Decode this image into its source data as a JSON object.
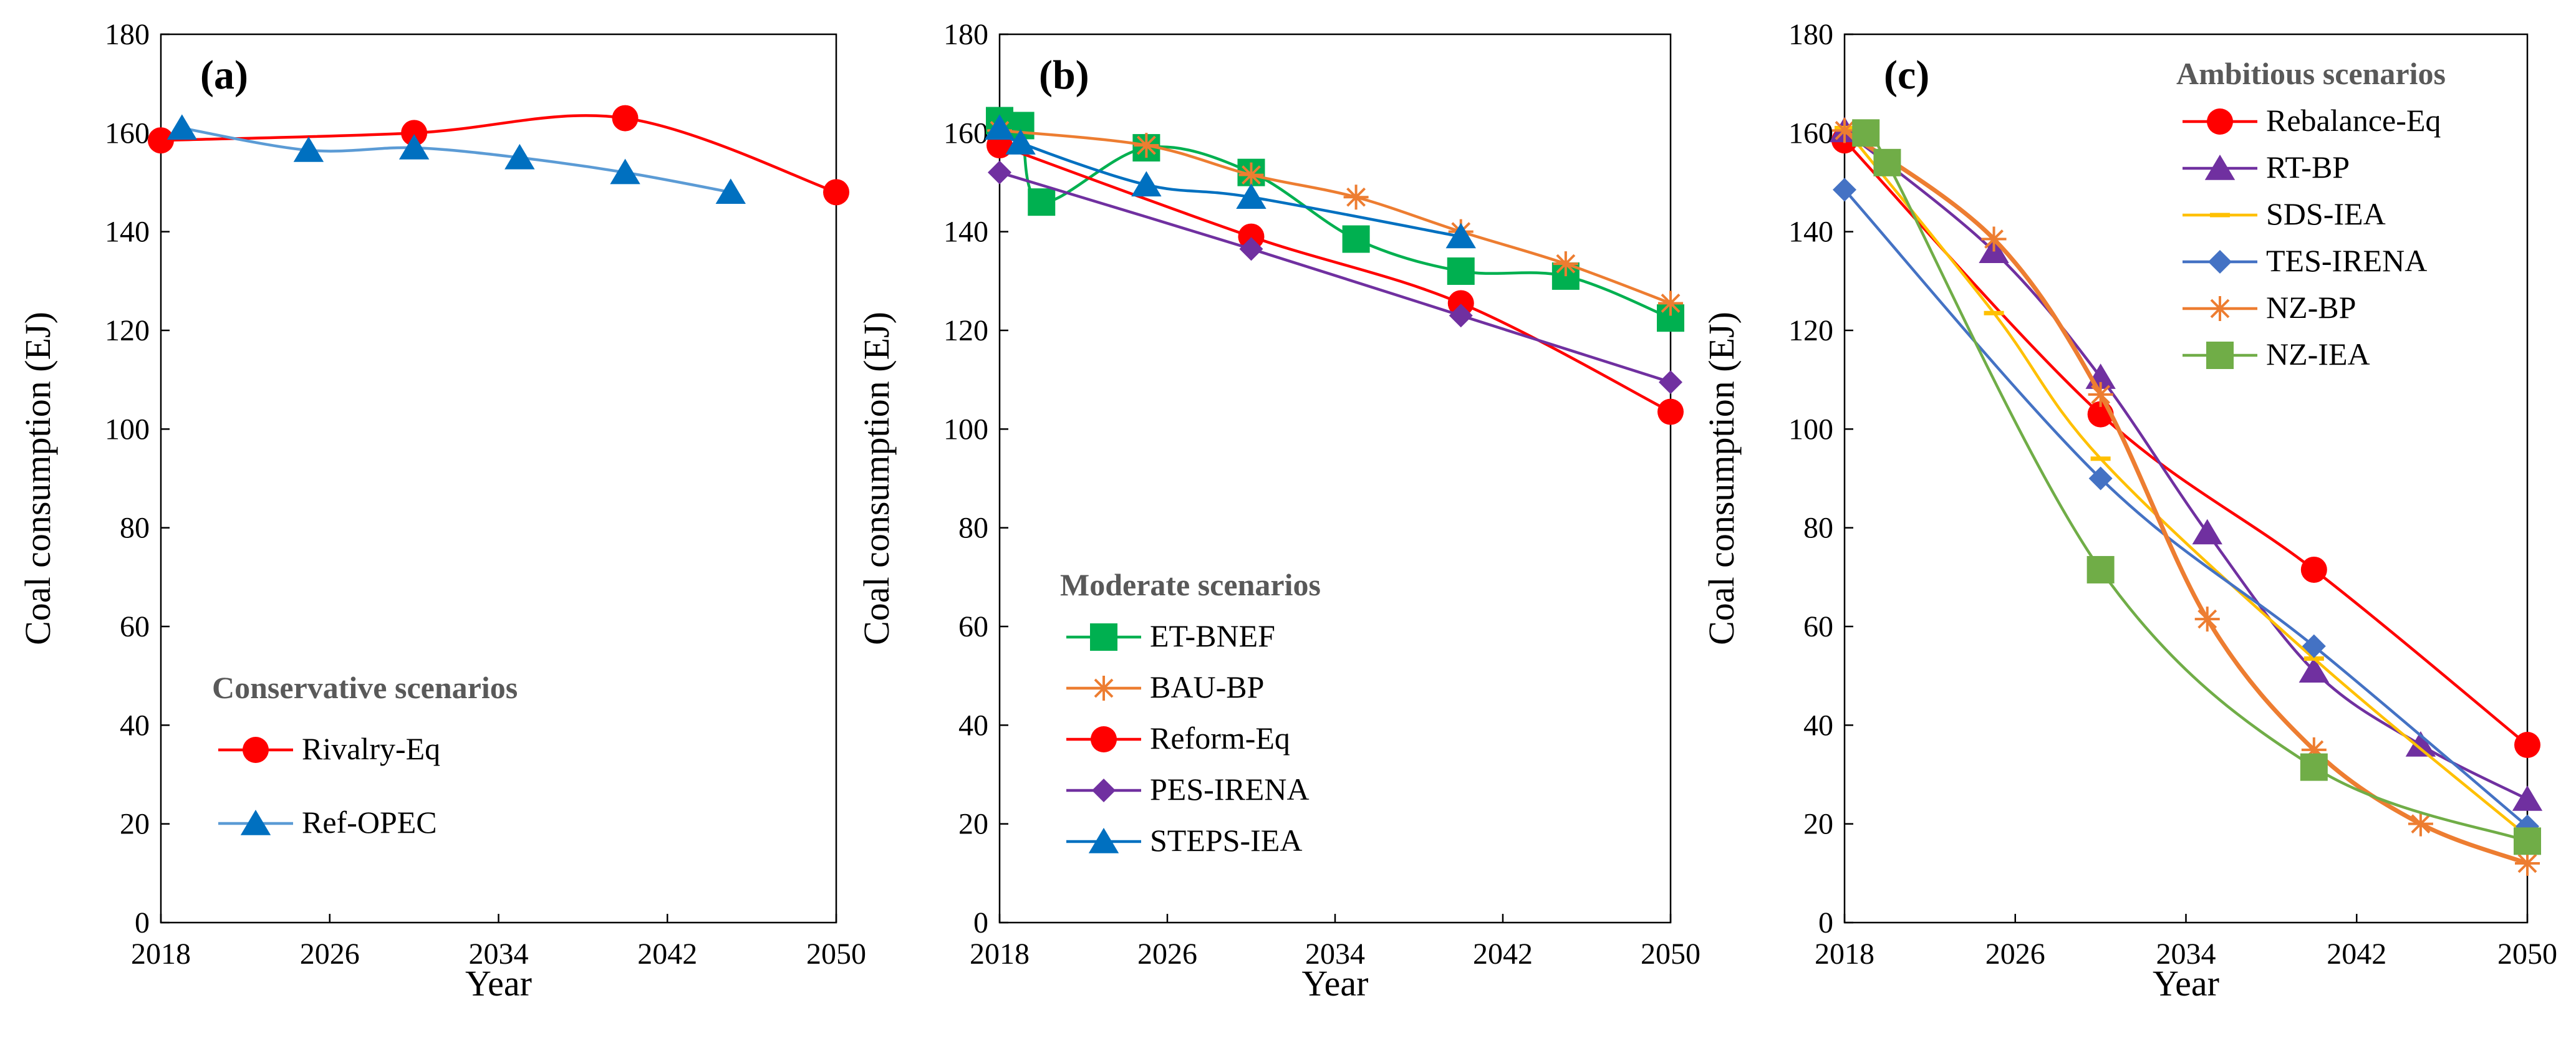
{
  "chart_data": [
    {
      "type": "line",
      "panel_label": "(a)",
      "xlabel": "Year",
      "ylabel": "Coal consumption (EJ)",
      "xlim": [
        2018,
        2050
      ],
      "ylim": [
        0,
        180
      ],
      "xticks": [
        2018,
        2026,
        2034,
        2042,
        2050
      ],
      "yticks": [
        0,
        20,
        40,
        60,
        80,
        100,
        120,
        140,
        160,
        180
      ],
      "legend_title": "Conservative scenarios",
      "legend_position": "bottom-left",
      "series": [
        {
          "name": "Rivalry-Eq",
          "color": "#ff0000",
          "marker": "circle",
          "points": [
            [
              2018,
              158.5
            ],
            [
              2030,
              160
            ],
            [
              2040,
              163
            ],
            [
              2050,
              148
            ]
          ]
        },
        {
          "name": "Ref-OPEC",
          "color": "#5b9bd5",
          "marker": "triangle",
          "marker_color": "#0070c0",
          "points": [
            [
              2019,
              161
            ],
            [
              2025,
              156.5
            ],
            [
              2030,
              157
            ],
            [
              2035,
              155
            ],
            [
              2040,
              152
            ],
            [
              2045,
              148
            ]
          ]
        }
      ]
    },
    {
      "type": "line",
      "panel_label": "(b)",
      "xlabel": "Year",
      "ylabel": "Coal consumption (EJ)",
      "xlim": [
        2018,
        2050
      ],
      "ylim": [
        0,
        180
      ],
      "xticks": [
        2018,
        2026,
        2034,
        2042,
        2050
      ],
      "yticks": [
        0,
        20,
        40,
        60,
        80,
        100,
        120,
        140,
        160,
        180
      ],
      "legend_title": "Moderate scenarios",
      "legend_position": "bottom-left",
      "series": [
        {
          "name": "ET-BNEF",
          "color": "#00b050",
          "marker": "square",
          "points": [
            [
              2018,
              162.5
            ],
            [
              2019,
              161.5
            ],
            [
              2020,
              146
            ],
            [
              2025,
              157
            ],
            [
              2030,
              152
            ],
            [
              2035,
              138.5
            ],
            [
              2040,
              132
            ],
            [
              2045,
              131
            ],
            [
              2050,
              122.5
            ]
          ]
        },
        {
          "name": "BAU-BP",
          "color": "#ed7d31",
          "marker": "asterisk",
          "points": [
            [
              2018,
              160.5
            ],
            [
              2025,
              157.5
            ],
            [
              2030,
              151.5
            ],
            [
              2035,
              147
            ],
            [
              2040,
              140
            ],
            [
              2045,
              133.5
            ],
            [
              2050,
              125.5
            ]
          ]
        },
        {
          "name": "Reform-Eq",
          "color": "#ff0000",
          "marker": "circle",
          "points": [
            [
              2018,
              157.5
            ],
            [
              2030,
              139
            ],
            [
              2040,
              125.5
            ],
            [
              2050,
              103.5
            ]
          ]
        },
        {
          "name": "PES-IRENA",
          "color": "#7030a0",
          "marker": "diamond",
          "points": [
            [
              2018,
              152
            ],
            [
              2030,
              136.5
            ],
            [
              2040,
              123
            ],
            [
              2050,
              109.5
            ]
          ]
        },
        {
          "name": "STEPS-IEA",
          "color": "#0070c0",
          "marker": "triangle",
          "points": [
            [
              2018,
              161
            ],
            [
              2019,
              158
            ],
            [
              2025,
              149.5
            ],
            [
              2030,
              147
            ],
            [
              2040,
              139
            ]
          ]
        }
      ]
    },
    {
      "type": "line",
      "panel_label": "(c)",
      "xlabel": "Year",
      "ylabel": "Coal consumption (EJ)",
      "xlim": [
        2018,
        2050
      ],
      "ylim": [
        0,
        180
      ],
      "xticks": [
        2018,
        2026,
        2034,
        2042,
        2050
      ],
      "yticks": [
        0,
        20,
        40,
        60,
        80,
        100,
        120,
        140,
        160,
        180
      ],
      "legend_title": "Ambitious scenarios",
      "legend_position": "top-right",
      "series": [
        {
          "name": "Rebalance-Eq",
          "color": "#ff0000",
          "marker": "circle",
          "points": [
            [
              2018,
              158.5
            ],
            [
              2030,
              103
            ],
            [
              2040,
              71.5
            ],
            [
              2050,
              36
            ]
          ]
        },
        {
          "name": "RT-BP",
          "color": "#7030a0",
          "marker": "triangle",
          "points": [
            [
              2018,
              160.5
            ],
            [
              2025,
              136
            ],
            [
              2030,
              110.5
            ],
            [
              2035,
              79
            ],
            [
              2040,
              51
            ],
            [
              2045,
              36
            ],
            [
              2050,
              25
            ]
          ]
        },
        {
          "name": "SDS-IEA",
          "color": "#ffc000",
          "marker": "dash",
          "points": [
            [
              2018,
              161
            ],
            [
              2025,
              123.5
            ],
            [
              2030,
              94
            ],
            [
              2040,
              53.5
            ],
            [
              2050,
              17.5
            ]
          ]
        },
        {
          "name": "TES-IRENA",
          "color": "#4472c4",
          "marker": "diamond",
          "points": [
            [
              2018,
              148.5
            ],
            [
              2030,
              90
            ],
            [
              2040,
              56
            ],
            [
              2050,
              19.5
            ]
          ]
        },
        {
          "name": "NZ-BP",
          "color": "#ed7d31",
          "marker": "asterisk",
          "points": [
            [
              2018,
              160.5
            ],
            [
              2025,
              138.5
            ],
            [
              2030,
              107
            ],
            [
              2035,
              61.5
            ],
            [
              2040,
              35
            ],
            [
              2045,
              20
            ],
            [
              2050,
              12
            ]
          ]
        },
        {
          "name": "NZ-IEA",
          "color": "#70ad47",
          "marker": "square",
          "marker_color": "#70ad47",
          "points": [
            [
              2019,
              160
            ],
            [
              2020,
              154
            ],
            [
              2030,
              71.5
            ],
            [
              2040,
              31.5
            ],
            [
              2050,
              16.5
            ]
          ]
        }
      ]
    }
  ]
}
